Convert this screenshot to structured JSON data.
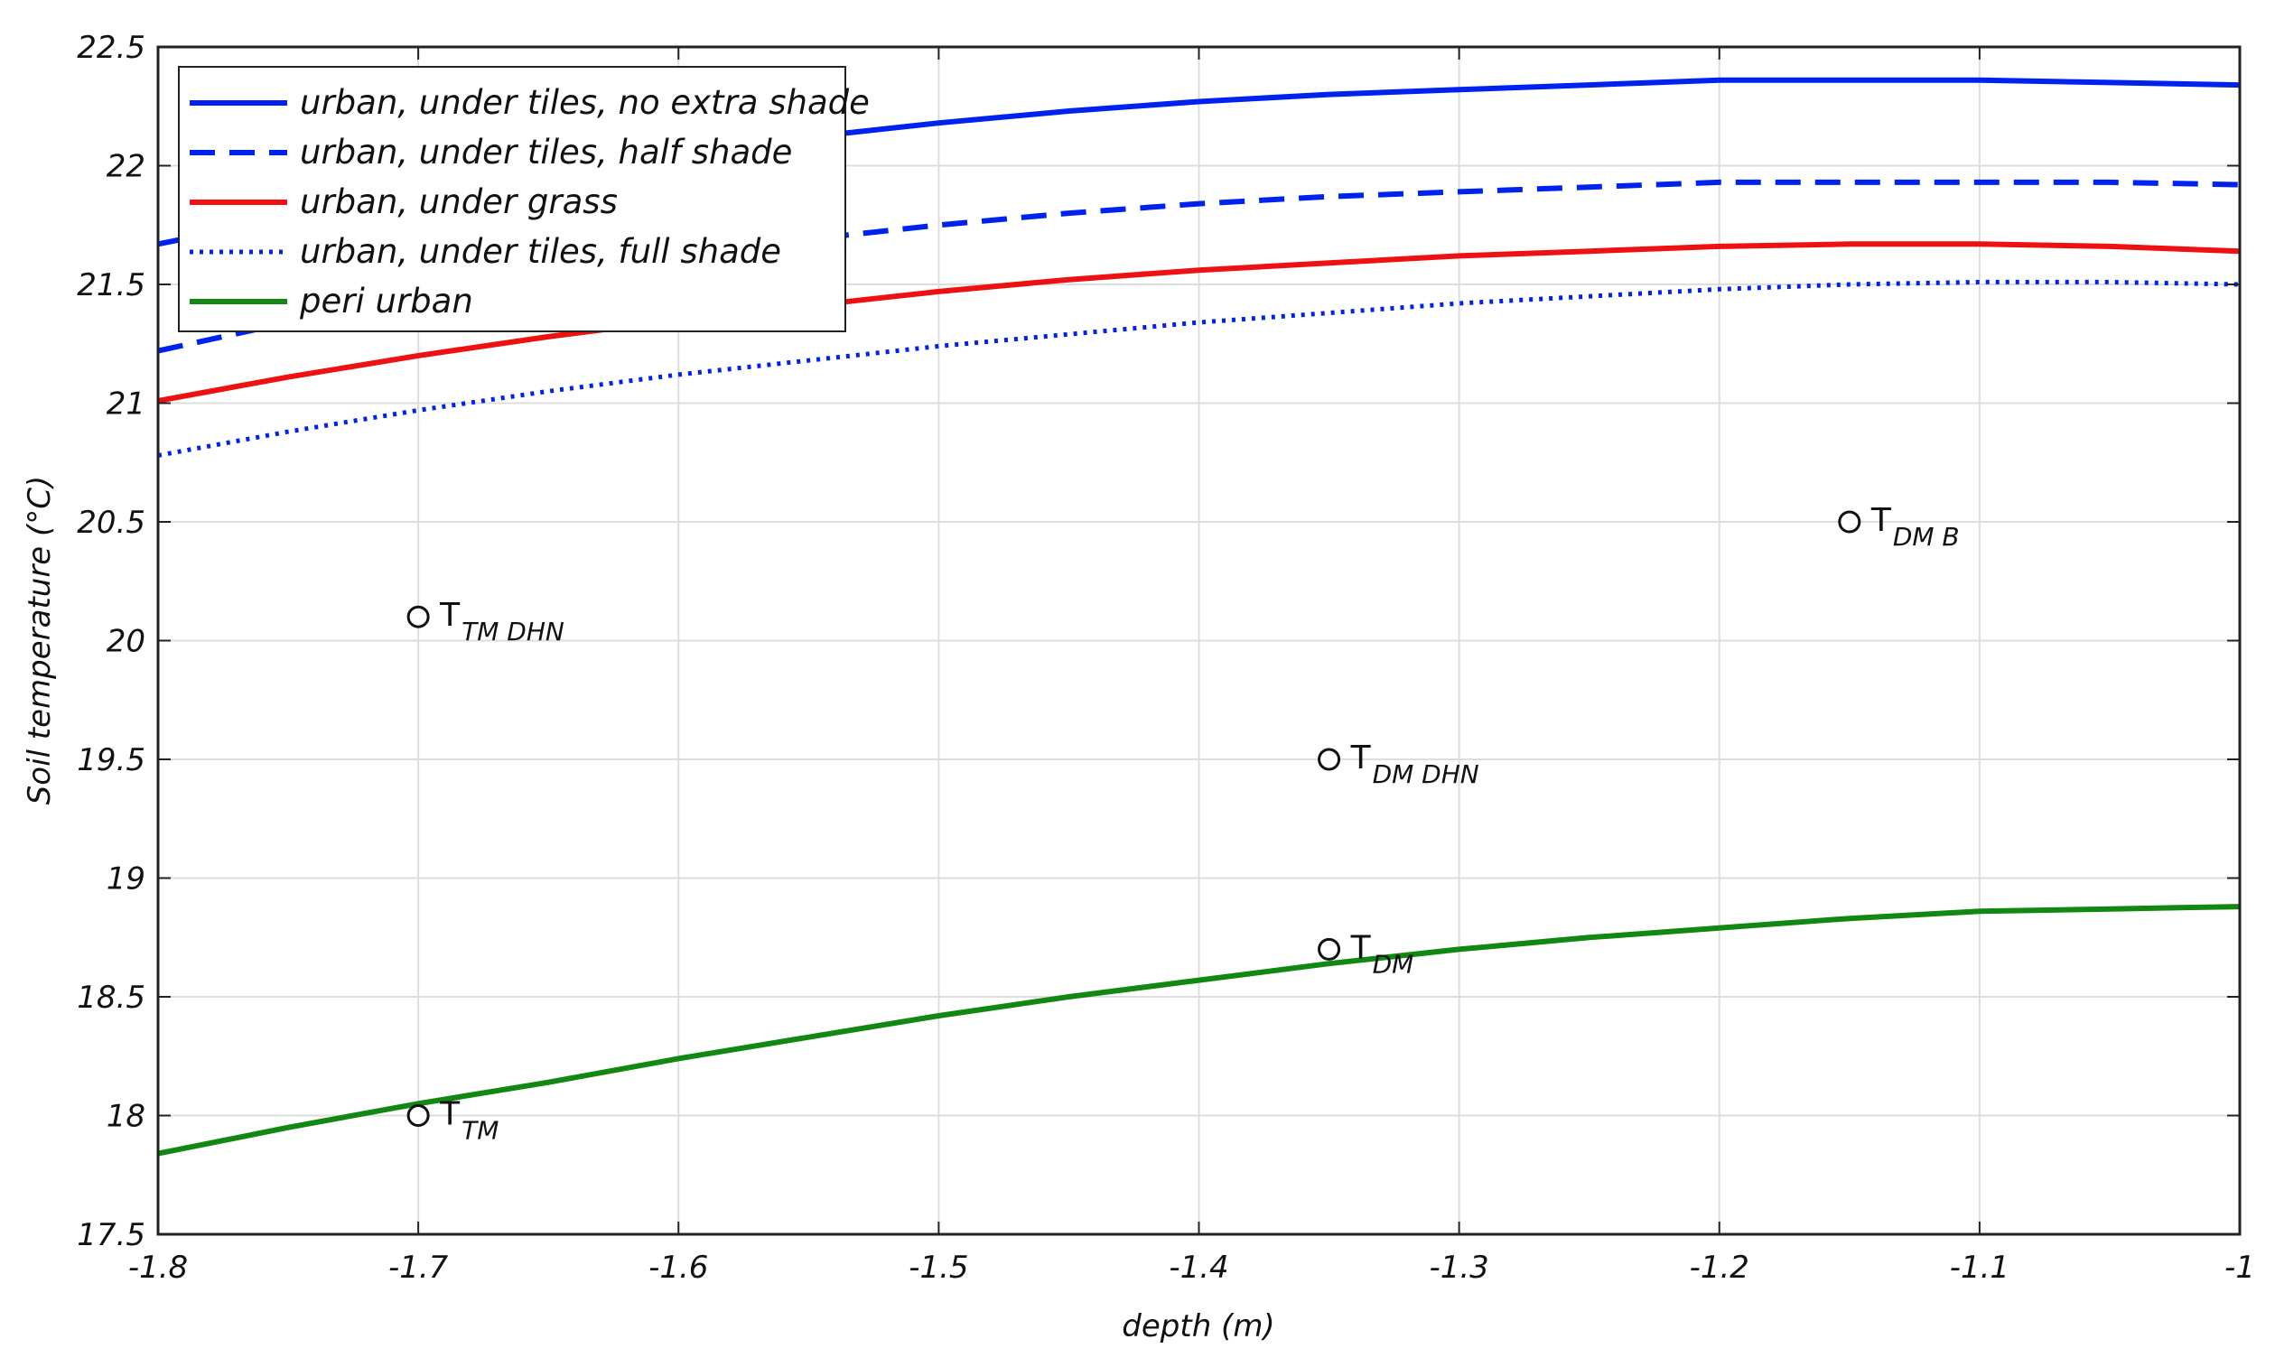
{
  "chart_data": {
    "type": "line",
    "xlabel": "depth (m)",
    "ylabel": "Soil temperature (°C)",
    "xlim": [
      -1.8,
      -1
    ],
    "ylim": [
      17.5,
      22.5
    ],
    "xticks": [
      -1.8,
      -1.7,
      -1.6,
      -1.5,
      -1.4,
      -1.3,
      -1.2,
      -1.1,
      -1
    ],
    "xtick_labels": [
      "-1.8",
      "-1.7",
      "-1.6",
      "-1.5",
      "-1.4",
      "-1.3",
      "-1.2",
      "-1.1",
      "-1"
    ],
    "yticks": [
      17.5,
      18,
      18.5,
      19,
      19.5,
      20,
      20.5,
      21,
      21.5,
      22,
      22.5
    ],
    "ytick_labels": [
      "17.5",
      "18",
      "18.5",
      "19",
      "19.5",
      "20",
      "20.5",
      "21",
      "21.5",
      "22",
      "22.5"
    ],
    "grid": true,
    "legend_position": "top-left",
    "x": [
      -1.8,
      -1.75,
      -1.7,
      -1.65,
      -1.6,
      -1.55,
      -1.5,
      -1.45,
      -1.4,
      -1.35,
      -1.3,
      -1.25,
      -1.2,
      -1.15,
      -1.1,
      -1.05,
      -1.0
    ],
    "series": [
      {
        "name": "urban, under tiles, no extra shade",
        "color": "#0022ee",
        "dash": "solid",
        "values": [
          21.67,
          21.78,
          21.88,
          21.97,
          22.05,
          22.12,
          22.18,
          22.23,
          22.27,
          22.3,
          22.32,
          22.34,
          22.36,
          22.36,
          22.36,
          22.35,
          22.34
        ]
      },
      {
        "name": "urban, under tiles, half shade",
        "color": "#0022ee",
        "dash": "dashed",
        "values": [
          21.22,
          21.34,
          21.45,
          21.54,
          21.62,
          21.69,
          21.75,
          21.8,
          21.84,
          21.87,
          21.89,
          21.91,
          21.93,
          21.93,
          21.93,
          21.93,
          21.92
        ]
      },
      {
        "name": "urban, under grass",
        "color": "#ee1111",
        "dash": "solid",
        "values": [
          21.01,
          21.11,
          21.2,
          21.28,
          21.35,
          21.41,
          21.47,
          21.52,
          21.56,
          21.59,
          21.62,
          21.64,
          21.66,
          21.67,
          21.67,
          21.66,
          21.64
        ]
      },
      {
        "name": "urban, under tiles, full shade",
        "color": "#0022ee",
        "dash": "dotted",
        "values": [
          20.78,
          20.88,
          20.97,
          21.05,
          21.12,
          21.18,
          21.24,
          21.29,
          21.34,
          21.38,
          21.42,
          21.45,
          21.48,
          21.5,
          21.51,
          21.51,
          21.5
        ]
      },
      {
        "name": "peri urban",
        "color": "#118811",
        "dash": "solid",
        "values": [
          17.84,
          17.95,
          18.05,
          18.14,
          18.24,
          18.33,
          18.42,
          18.5,
          18.57,
          18.64,
          18.7,
          18.75,
          18.79,
          18.83,
          18.86,
          18.87,
          18.88
        ]
      }
    ],
    "points": [
      {
        "x": -1.7,
        "y": 20.1,
        "label_main": "T",
        "label_sub": "TM DHN"
      },
      {
        "x": -1.35,
        "y": 19.5,
        "label_main": "T",
        "label_sub": "DM DHN"
      },
      {
        "x": -1.15,
        "y": 20.5,
        "label_main": "T",
        "label_sub": "DM B"
      },
      {
        "x": -1.35,
        "y": 18.7,
        "label_main": "T",
        "label_sub": "DM"
      },
      {
        "x": -1.7,
        "y": 18.0,
        "label_main": "T",
        "label_sub": "TM"
      }
    ]
  }
}
